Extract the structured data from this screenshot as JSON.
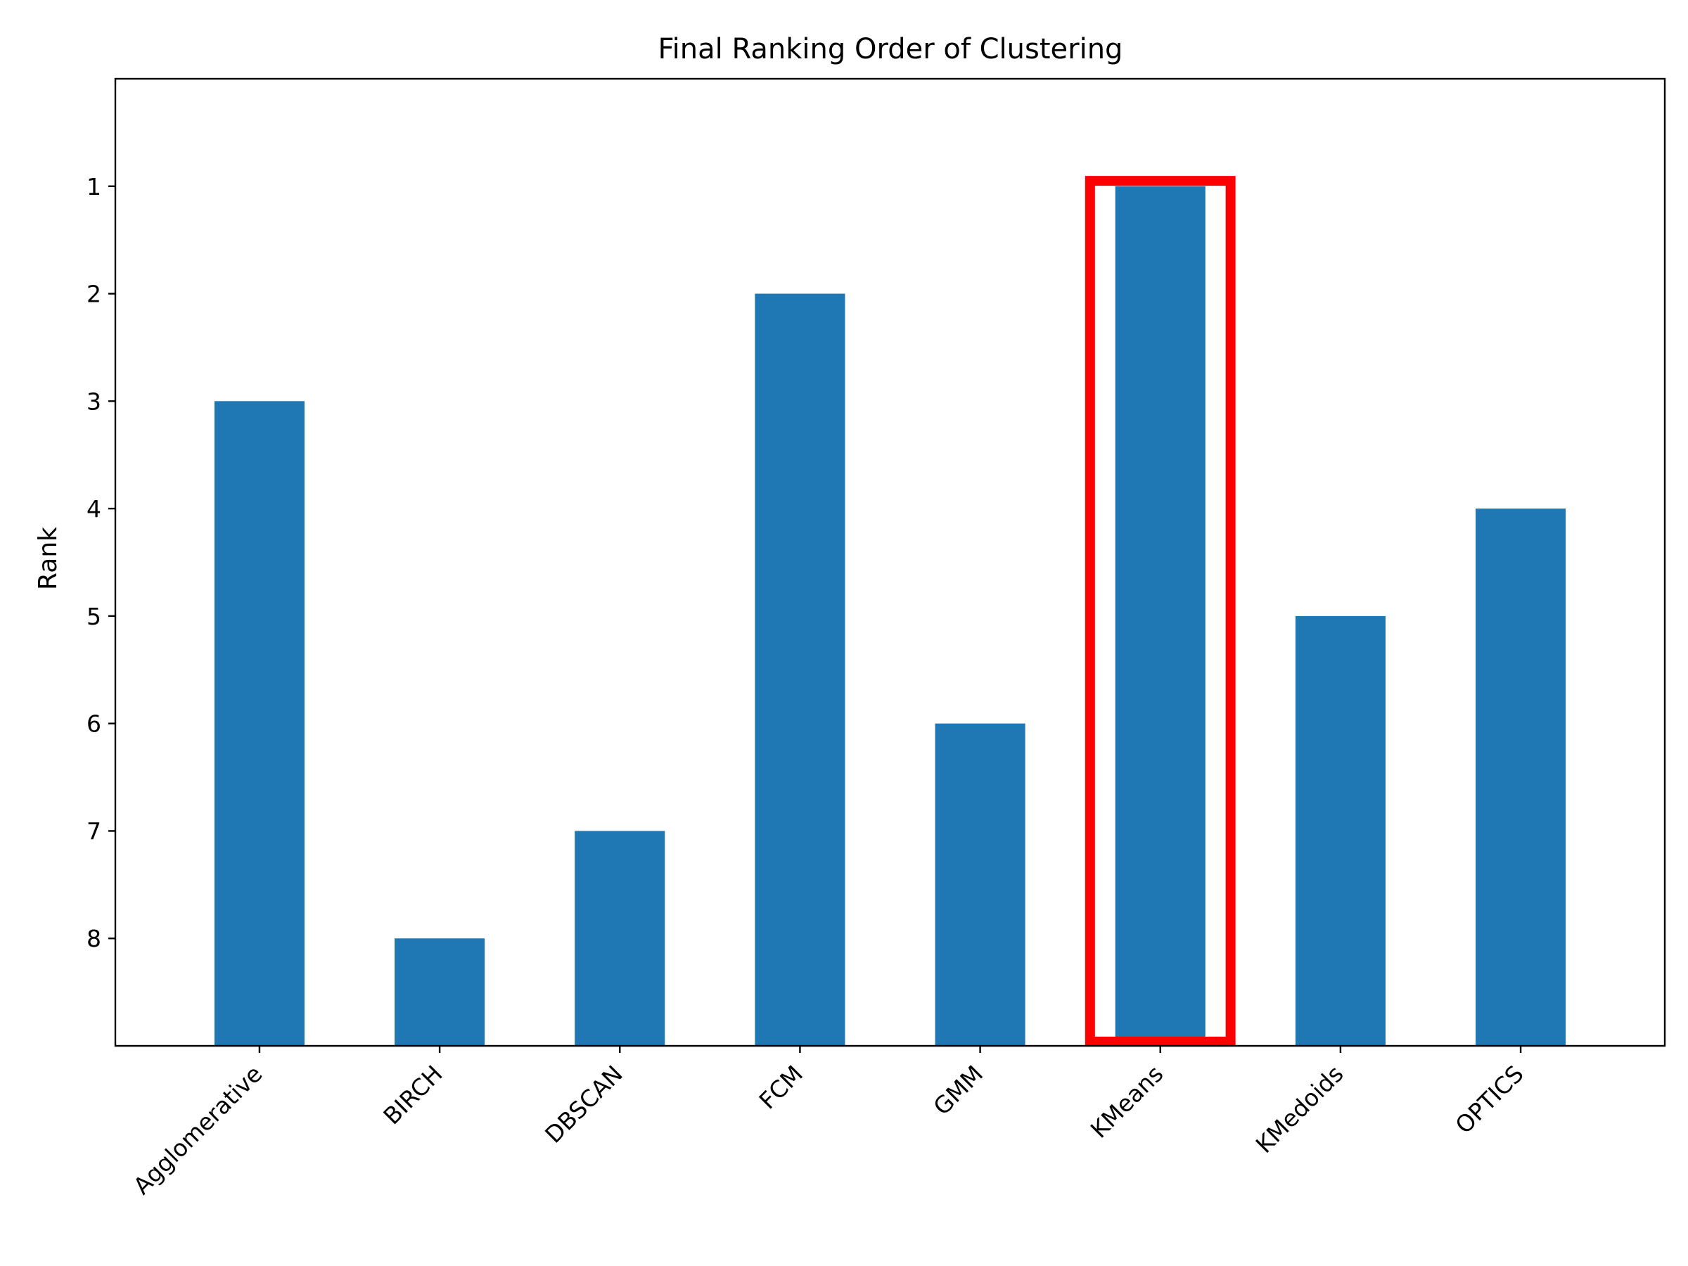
{
  "chart_data": {
    "type": "bar",
    "title": "Final Ranking Order of Clustering",
    "xlabel": "",
    "ylabel": "Rank",
    "categories": [
      "Agglomerative",
      "BIRCH",
      "DBSCAN",
      "FCM",
      "GMM",
      "KMeans",
      "KMedoids",
      "OPTICS"
    ],
    "values": [
      3,
      8,
      7,
      2,
      6,
      1,
      5,
      4
    ],
    "yticks": [
      "1",
      "2",
      "3",
      "4",
      "5",
      "6",
      "7",
      "8"
    ],
    "ylim": [
      9,
      0
    ],
    "y_inverted": true,
    "grid": false,
    "highlight": {
      "category": "KMeans",
      "color": "#ff0000"
    },
    "colors": {
      "bar": "#1f77b4",
      "highlight": "#ff0000",
      "axis": "#000000"
    }
  }
}
